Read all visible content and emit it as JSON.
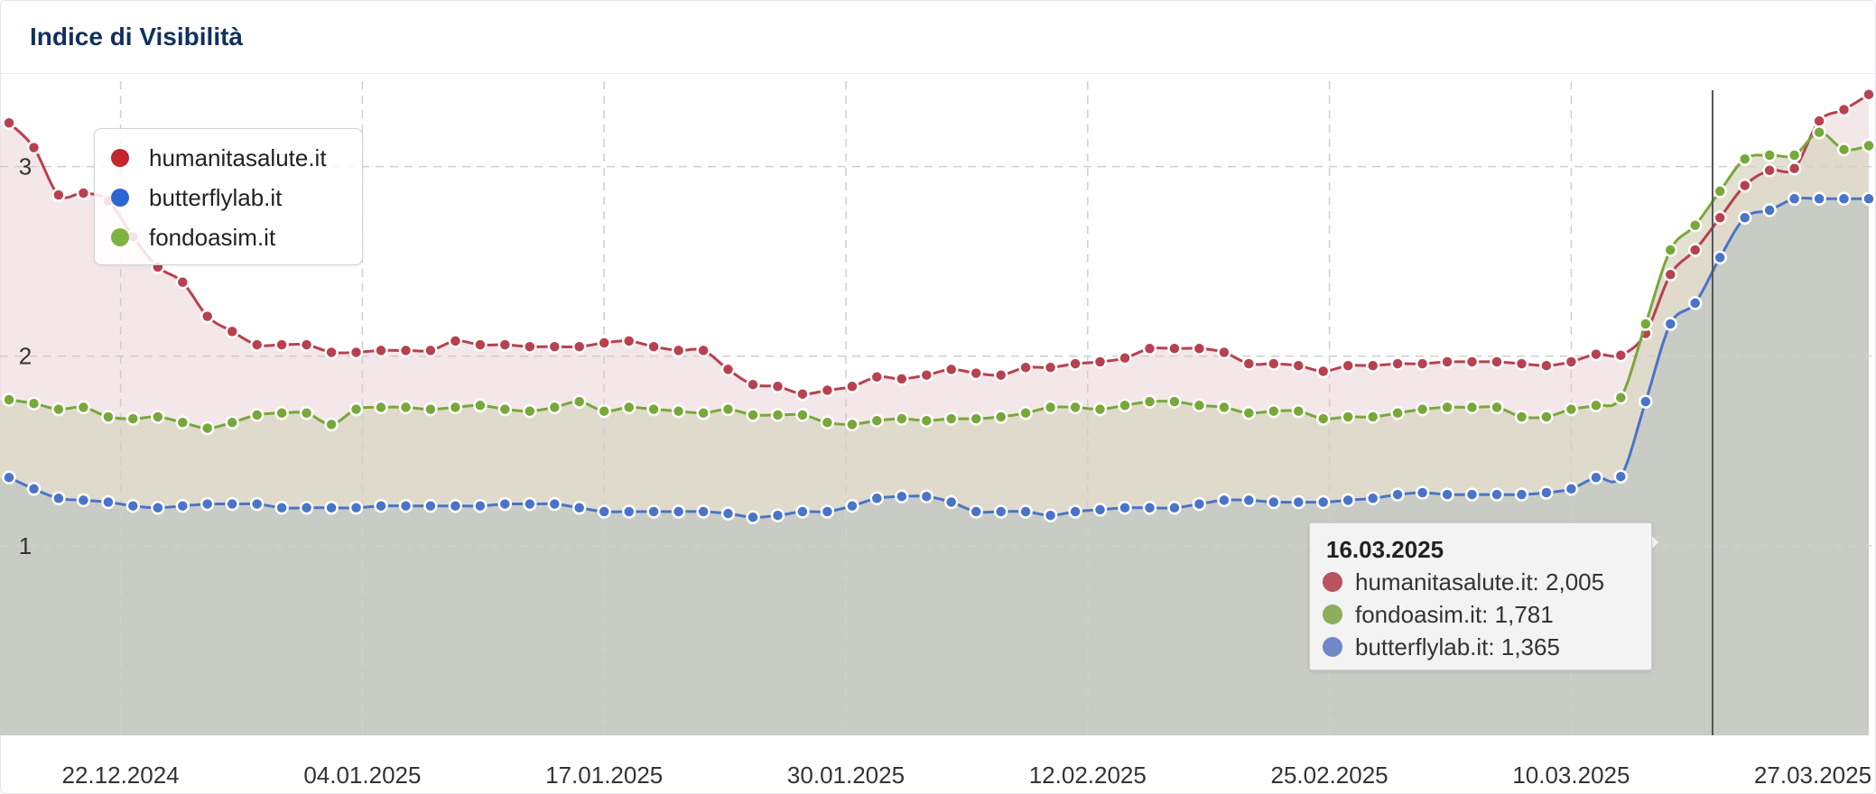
{
  "header": {
    "title": "Indice di Visibilità"
  },
  "colors": {
    "humanitasalute": "#b8414f",
    "butterflylab": "#4a74c9",
    "fondoasim": "#78a83a",
    "legend_humanitasalute": "#c1272d",
    "legend_butterflylab": "#2c66d4",
    "legend_fondoasim": "#7cb342"
  },
  "legend": {
    "items": [
      {
        "label": "humanitasalute.it",
        "color": "#c1272d"
      },
      {
        "label": "butterflylab.it",
        "color": "#2c66d4"
      },
      {
        "label": "fondoasim.it",
        "color": "#7cb342"
      }
    ]
  },
  "tooltip": {
    "date": "16.03.2025",
    "rows": [
      {
        "text": "humanitasalute.it: 2,005",
        "color": "#b8535f"
      },
      {
        "text": "fondoasim.it: 1,781",
        "color": "#8fad5f"
      },
      {
        "text": "butterflylab.it: 1,365",
        "color": "#6f86c9"
      }
    ]
  },
  "chart_data": {
    "type": "area",
    "title": "Indice di Visibilità",
    "xlabel": "",
    "ylabel": "",
    "ylim": [
      0,
      3.45
    ],
    "yticks": [
      1,
      2,
      3
    ],
    "xtick_labels": [
      "22.12.2024",
      "04.01.2025",
      "17.01.2025",
      "30.01.2025",
      "12.02.2025",
      "25.02.2025",
      "10.03.2025",
      "27.03.2025"
    ],
    "x_start": "2024-12-16",
    "x_end": "2025-03-26",
    "highlight_date": "16.03.2025",
    "grid": true,
    "legend_position": "top-left",
    "series": [
      {
        "name": "humanitasalute.it",
        "values": [
          3.23,
          3.1,
          2.85,
          2.86,
          2.82,
          2.63,
          2.47,
          2.39,
          2.21,
          2.13,
          2.06,
          2.06,
          2.06,
          2.02,
          2.02,
          2.03,
          2.03,
          2.03,
          2.08,
          2.06,
          2.06,
          2.05,
          2.05,
          2.05,
          2.07,
          2.08,
          2.05,
          2.03,
          2.03,
          1.93,
          1.85,
          1.84,
          1.8,
          1.82,
          1.84,
          1.89,
          1.88,
          1.9,
          1.93,
          1.91,
          1.9,
          1.94,
          1.94,
          1.96,
          1.97,
          1.99,
          2.04,
          2.04,
          2.04,
          2.02,
          1.96,
          1.96,
          1.95,
          1.92,
          1.95,
          1.95,
          1.96,
          1.96,
          1.97,
          1.97,
          1.97,
          1.96,
          1.95,
          1.97,
          2.01,
          2.005,
          2.12,
          2.43,
          2.56,
          2.73,
          2.9,
          2.98,
          2.99,
          3.24,
          3.3,
          3.38
        ]
      },
      {
        "name": "fondoasim.it",
        "values": [
          1.77,
          1.75,
          1.72,
          1.73,
          1.68,
          1.67,
          1.68,
          1.65,
          1.62,
          1.65,
          1.69,
          1.7,
          1.7,
          1.64,
          1.72,
          1.73,
          1.73,
          1.72,
          1.73,
          1.74,
          1.72,
          1.71,
          1.73,
          1.76,
          1.71,
          1.73,
          1.72,
          1.71,
          1.7,
          1.72,
          1.69,
          1.69,
          1.69,
          1.65,
          1.64,
          1.66,
          1.67,
          1.66,
          1.67,
          1.67,
          1.68,
          1.7,
          1.73,
          1.73,
          1.72,
          1.74,
          1.76,
          1.76,
          1.74,
          1.73,
          1.7,
          1.71,
          1.71,
          1.67,
          1.68,
          1.68,
          1.7,
          1.72,
          1.73,
          1.73,
          1.73,
          1.68,
          1.68,
          1.72,
          1.74,
          1.781,
          2.17,
          2.56,
          2.69,
          2.87,
          3.04,
          3.06,
          3.06,
          3.18,
          3.09,
          3.11
        ]
      },
      {
        "name": "butterflylab.it",
        "values": [
          1.36,
          1.3,
          1.25,
          1.24,
          1.23,
          1.21,
          1.2,
          1.21,
          1.22,
          1.22,
          1.22,
          1.2,
          1.2,
          1.2,
          1.2,
          1.21,
          1.21,
          1.21,
          1.21,
          1.21,
          1.22,
          1.22,
          1.22,
          1.2,
          1.18,
          1.18,
          1.18,
          1.18,
          1.18,
          1.17,
          1.15,
          1.16,
          1.18,
          1.18,
          1.21,
          1.25,
          1.26,
          1.26,
          1.23,
          1.18,
          1.18,
          1.18,
          1.16,
          1.18,
          1.19,
          1.2,
          1.2,
          1.2,
          1.22,
          1.24,
          1.24,
          1.23,
          1.23,
          1.23,
          1.24,
          1.25,
          1.27,
          1.28,
          1.27,
          1.27,
          1.27,
          1.27,
          1.28,
          1.3,
          1.36,
          1.365,
          1.76,
          2.17,
          2.28,
          2.52,
          2.73,
          2.77,
          2.83,
          2.83,
          2.83,
          2.83
        ]
      }
    ]
  }
}
